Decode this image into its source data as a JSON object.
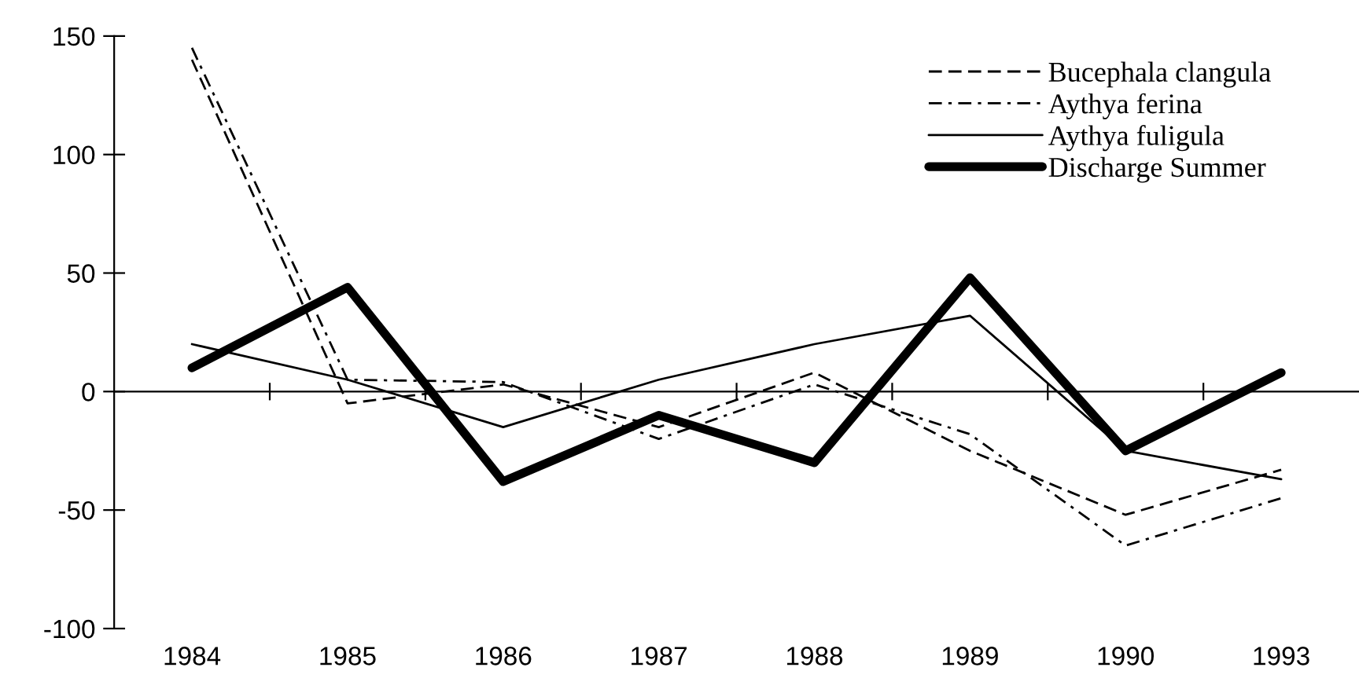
{
  "chart_data": {
    "type": "line",
    "categories": [
      "1984",
      "1985",
      "1986",
      "1987",
      "1988",
      "1989",
      "1990",
      "1993"
    ],
    "series": [
      {
        "name": "Bucephala clangula",
        "color": "#000000",
        "line_style": "dashed",
        "values": [
          140,
          -5,
          3,
          -15,
          8,
          -25,
          -52,
          -33
        ]
      },
      {
        "name": "Aythya ferina",
        "color": "#000000",
        "line_style": "dashdot",
        "values": [
          145,
          5,
          4,
          -20,
          3,
          -18,
          -65,
          -45
        ]
      },
      {
        "name": "Aythya fuligula",
        "color": "#000000",
        "line_style": "solid",
        "values": [
          20,
          5,
          -15,
          5,
          20,
          32,
          -25,
          -37
        ]
      },
      {
        "name": "Discharge Summer",
        "color": "#000000",
        "line_style": "solid",
        "values": [
          10,
          44,
          -38,
          -10,
          -30,
          48,
          -25,
          8
        ]
      }
    ],
    "ylim": [
      -100,
      150
    ],
    "yticks": [
      -100,
      -50,
      0,
      50,
      100,
      150
    ],
    "legend": "top right",
    "marker": "none"
  }
}
